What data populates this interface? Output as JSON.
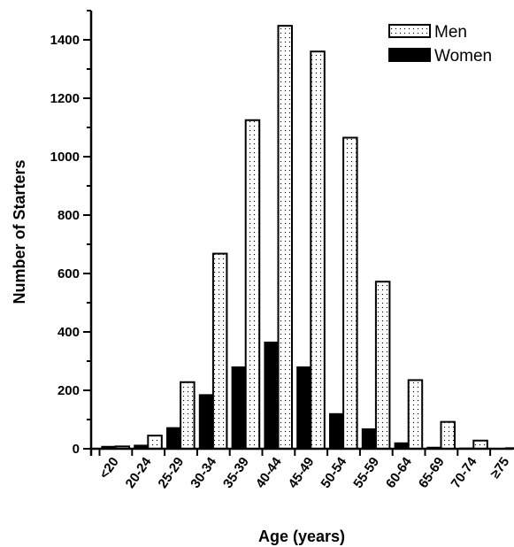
{
  "chart_data": {
    "type": "bar",
    "title": "",
    "xlabel": "Age (years)",
    "ylabel": "Number of Starters",
    "categories": [
      "<20",
      "20-24",
      "25-29",
      "30-34",
      "35-39",
      "40-44",
      "45-49",
      "50-54",
      "55-59",
      "60-64",
      "65-69",
      "70-74",
      "≥75"
    ],
    "series": [
      {
        "name": "Women",
        "values": [
          8,
          12,
          72,
          185,
          280,
          365,
          280,
          120,
          68,
          20,
          5,
          2,
          0
        ],
        "color": "#000000",
        "pattern": "solid"
      },
      {
        "name": "Men",
        "values": [
          8,
          45,
          228,
          668,
          1125,
          1448,
          1360,
          1065,
          572,
          235,
          92,
          28,
          2
        ],
        "color": "#ffffff",
        "pattern": "dotted"
      }
    ],
    "ylim": [
      0,
      1500
    ],
    "yticks": [
      0,
      200,
      400,
      600,
      800,
      1000,
      1200,
      1400
    ],
    "legend": {
      "position": "top-right",
      "order": [
        "Men",
        "Women"
      ]
    },
    "grid": false
  }
}
